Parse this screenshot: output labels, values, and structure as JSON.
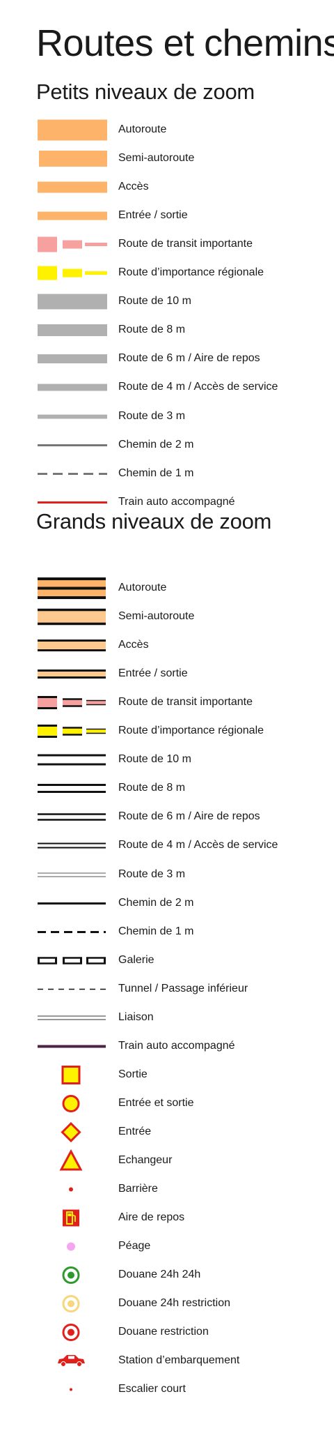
{
  "title": "Routes et chemins",
  "sections": [
    {
      "title": "Petits niveaux de zoom",
      "items": [
        {
          "label": "Autoroute",
          "icon": "autoroute-small-icon"
        },
        {
          "label": "Semi-autoroute",
          "icon": "semi-autoroute-small-icon"
        },
        {
          "label": "Accès",
          "icon": "acces-small-icon"
        },
        {
          "label": "Entrée / sortie",
          "icon": "entree-sortie-small-icon"
        },
        {
          "label": "Route de transit importante",
          "icon": "transit-small-icon"
        },
        {
          "label": "Route d’importance régionale",
          "icon": "regionale-small-icon"
        },
        {
          "label": "Route de 10 m",
          "icon": "route-10m-small-icon"
        },
        {
          "label": "Route de 8 m",
          "icon": "route-8m-small-icon"
        },
        {
          "label": "Route de 6 m / Aire de repos",
          "icon": "route-6m-small-icon"
        },
        {
          "label": "Route de 4 m / Accès de service",
          "icon": "route-4m-small-icon"
        },
        {
          "label": "Route de 3 m",
          "icon": "route-3m-small-icon"
        },
        {
          "label": "Chemin de 2 m",
          "icon": "chemin-2m-small-icon"
        },
        {
          "label": "Chemin de 1 m",
          "icon": "chemin-1m-small-icon"
        },
        {
          "label": "Train auto accompagné",
          "icon": "train-auto-small-icon"
        }
      ]
    },
    {
      "title": "Grands niveaux de zoom",
      "items": [
        {
          "label": "Autoroute",
          "icon": "autoroute-large-icon"
        },
        {
          "label": "Semi-autoroute",
          "icon": "semi-autoroute-large-icon"
        },
        {
          "label": "Accès",
          "icon": "acces-large-icon"
        },
        {
          "label": "Entrée / sortie",
          "icon": "entree-sortie-large-icon"
        },
        {
          "label": "Route de transit importante",
          "icon": "transit-large-icon"
        },
        {
          "label": "Route d’importance régionale",
          "icon": "regionale-large-icon"
        },
        {
          "label": "Route de 10 m",
          "icon": "route-10m-large-icon"
        },
        {
          "label": "Route de 8 m",
          "icon": "route-8m-large-icon"
        },
        {
          "label": "Route de 6 m / Aire de repos",
          "icon": "route-6m-large-icon"
        },
        {
          "label": "Route de 4 m / Accès de service",
          "icon": "route-4m-large-icon"
        },
        {
          "label": "Route de 3 m",
          "icon": "route-3m-large-icon"
        },
        {
          "label": "Chemin de 2 m",
          "icon": "chemin-2m-large-icon"
        },
        {
          "label": "Chemin de 1 m",
          "icon": "chemin-1m-large-icon"
        },
        {
          "label": "Galerie",
          "icon": "galerie-icon"
        },
        {
          "label": "Tunnel / Passage inférieur",
          "icon": "tunnel-icon"
        },
        {
          "label": "Liaison",
          "icon": "liaison-icon"
        },
        {
          "label": "Train auto accompagné",
          "icon": "train-auto-large-icon"
        },
        {
          "label": "Sortie",
          "icon": "sortie-square-icon"
        },
        {
          "label": "Entrée et sortie",
          "icon": "entree-et-sortie-circle-icon"
        },
        {
          "label": "Entrée",
          "icon": "entree-diamond-icon"
        },
        {
          "label": "Echangeur",
          "icon": "echangeur-triangle-icon"
        },
        {
          "label": "Barrière",
          "icon": "barriere-dot-icon"
        },
        {
          "label": "Aire de repos",
          "icon": "aire-de-repos-fuel-icon"
        },
        {
          "label": "Péage",
          "icon": "peage-dot-icon"
        },
        {
          "label": "Douane 24h 24h",
          "icon": "douane-24h-icon"
        },
        {
          "label": "Douane 24h restriction",
          "icon": "douane-24h-restriction-icon"
        },
        {
          "label": "Douane restriction",
          "icon": "douane-restriction-icon"
        },
        {
          "label": "Station d’embarquement",
          "icon": "station-car-icon"
        },
        {
          "label": "Escalier court",
          "icon": "escalier-court-dot-icon"
        }
      ]
    }
  ],
  "colors": {
    "orange": "#fdb46a",
    "light_orange": "#fdc98e",
    "pink": "#f7a0a0",
    "yellow": "#fff200",
    "grey": "#b0b0b0",
    "dark_grey": "#777777",
    "red": "#e0201b",
    "purple": "#4b2446",
    "green": "#2e9a2e",
    "magenta_light": "#f4a6f0",
    "black": "#111111"
  }
}
